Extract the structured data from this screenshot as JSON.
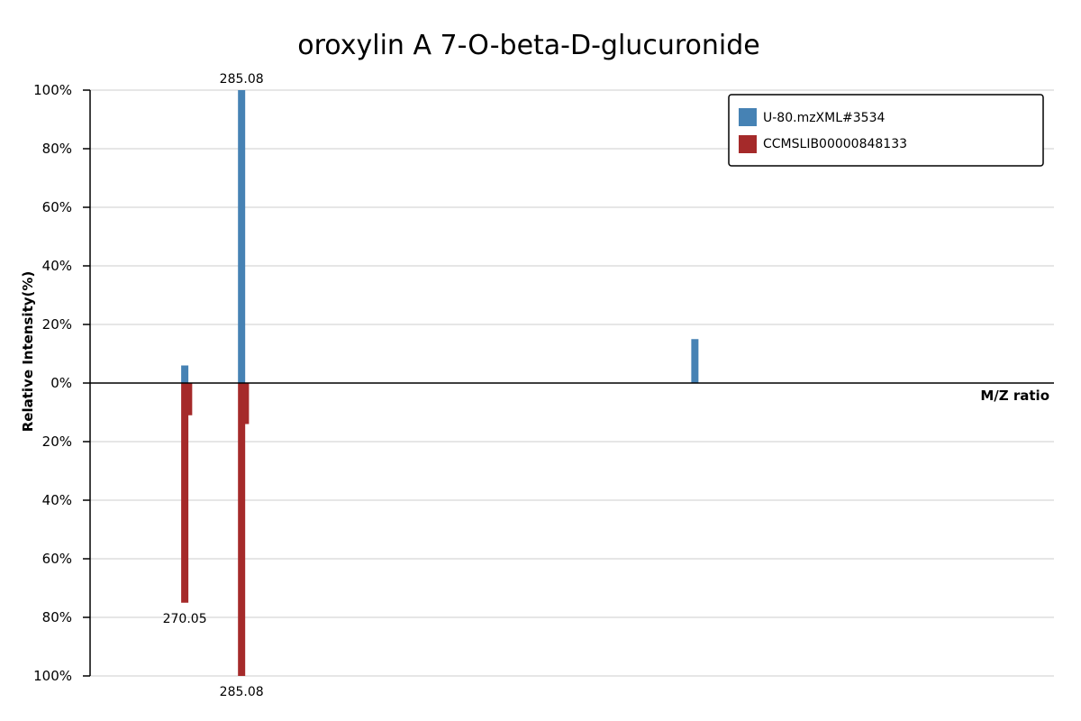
{
  "chart_data": {
    "type": "bar",
    "title": "oroxylin A 7-O-beta-D-glucuronide",
    "xlabel": "M/Z ratio",
    "ylabel": "Relative Intensity(%)",
    "xlim": [
      245,
      500
    ],
    "ylim_top": [
      0,
      100
    ],
    "ylim_bottom": [
      0,
      100
    ],
    "top_ticks": [
      "0%",
      "20%",
      "40%",
      "60%",
      "80%",
      "100%"
    ],
    "bottom_ticks": [
      "20%",
      "40%",
      "60%",
      "80%",
      "100%"
    ],
    "legend_position": "top-right",
    "grid": true,
    "series": [
      {
        "name": "U-80.mzXML#3534",
        "color": "#4682b4",
        "direction": "up",
        "peaks": [
          {
            "mz": 270.05,
            "intensity": 6
          },
          {
            "mz": 285.08,
            "intensity": 100,
            "label": "285.08"
          },
          {
            "mz": 405.0,
            "intensity": 15
          }
        ]
      },
      {
        "name": "CCMSLIB00000848133",
        "color": "#a52a2a",
        "direction": "down",
        "peaks": [
          {
            "mz": 270.05,
            "intensity": 75,
            "label": "270.05"
          },
          {
            "mz": 271.06,
            "intensity": 11
          },
          {
            "mz": 285.08,
            "intensity": 100,
            "label": "285.08"
          },
          {
            "mz": 286.08,
            "intensity": 14
          }
        ]
      }
    ]
  }
}
